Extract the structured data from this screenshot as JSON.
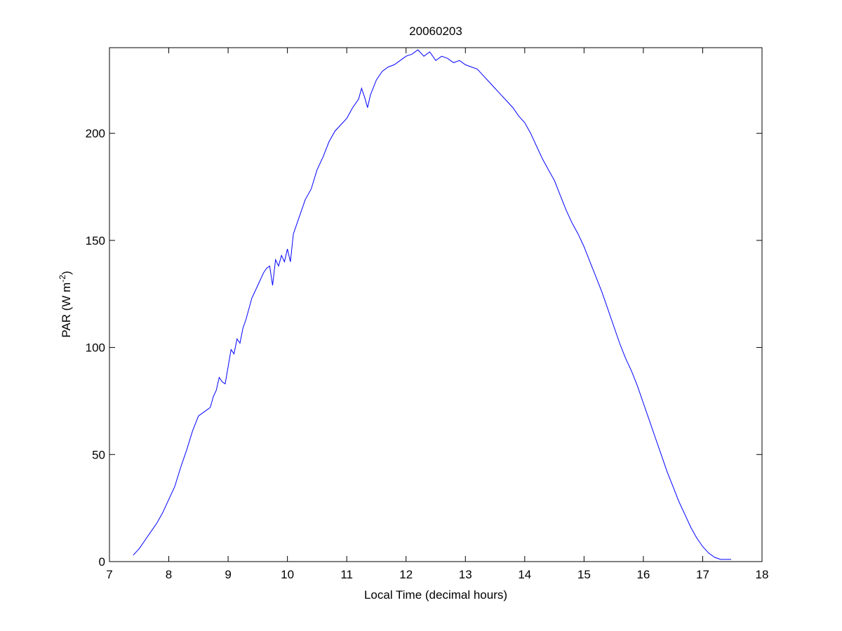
{
  "chart_data": {
    "type": "line",
    "title": "20060203",
    "xlabel": "Local Time (decimal hours)",
    "ylabel": {
      "prefix": "PAR (W m",
      "superscript": "-2",
      "suffix": ")"
    },
    "xlim": [
      7,
      18
    ],
    "ylim": [
      0,
      240
    ],
    "xticks": [
      7,
      8,
      9,
      10,
      11,
      12,
      13,
      14,
      15,
      16,
      17,
      18
    ],
    "yticks": [
      0,
      50,
      100,
      150,
      200
    ],
    "grid": false,
    "line_color": "#0000ff",
    "series": [
      {
        "x": [
          7.4,
          7.5,
          7.6,
          7.7,
          7.8,
          7.9,
          8.0,
          8.1,
          8.2,
          8.3,
          8.4,
          8.5,
          8.6,
          8.65,
          8.7,
          8.75,
          8.8,
          8.85,
          8.9,
          8.95,
          9.0,
          9.05,
          9.1,
          9.15,
          9.2,
          9.25,
          9.3,
          9.4,
          9.5,
          9.6,
          9.65,
          9.7,
          9.75,
          9.8,
          9.85,
          9.9,
          9.95,
          10.0,
          10.05,
          10.1,
          10.2,
          10.3,
          10.4,
          10.5,
          10.6,
          10.7,
          10.8,
          10.9,
          11.0,
          11.1,
          11.2,
          11.25,
          11.3,
          11.35,
          11.4,
          11.5,
          11.6,
          11.7,
          11.8,
          11.9,
          12.0,
          12.1,
          12.2,
          12.3,
          12.4,
          12.5,
          12.6,
          12.7,
          12.8,
          12.9,
          13.0,
          13.1,
          13.2,
          13.3,
          13.4,
          13.5,
          13.6,
          13.7,
          13.8,
          13.9,
          14.0,
          14.1,
          14.2,
          14.3,
          14.4,
          14.5,
          14.6,
          14.7,
          14.8,
          14.9,
          15.0,
          15.1,
          15.2,
          15.3,
          15.4,
          15.5,
          15.6,
          15.7,
          15.8,
          15.9,
          16.0,
          16.1,
          16.2,
          16.3,
          16.4,
          16.5,
          16.6,
          16.7,
          16.8,
          16.9,
          17.0,
          17.1,
          17.2,
          17.3,
          17.4,
          17.48
        ],
        "y": [
          3,
          6,
          10,
          14,
          18,
          23,
          29,
          35,
          44,
          52,
          61,
          68,
          70,
          71,
          72,
          77,
          80,
          86,
          84,
          83,
          91,
          99,
          97,
          104,
          102,
          109,
          113,
          123,
          129,
          135,
          137,
          138,
          129,
          141,
          138,
          143,
          140,
          146,
          140,
          153,
          161,
          169,
          174,
          183,
          189,
          196,
          201,
          204,
          207,
          212,
          216,
          221,
          217,
          212,
          218,
          225,
          229,
          231,
          232,
          234,
          236,
          237,
          239,
          236,
          238,
          234,
          236,
          235,
          233,
          234,
          232,
          231,
          230,
          227,
          224,
          221,
          218,
          215,
          212,
          208,
          205,
          200,
          194,
          188,
          183,
          178,
          171,
          164,
          158,
          153,
          147,
          140,
          133,
          126,
          118,
          110,
          102,
          95,
          89,
          82,
          74,
          66,
          58,
          50,
          42,
          35,
          28,
          22,
          16,
          11,
          7,
          4,
          2,
          1,
          1,
          1
        ]
      }
    ]
  }
}
